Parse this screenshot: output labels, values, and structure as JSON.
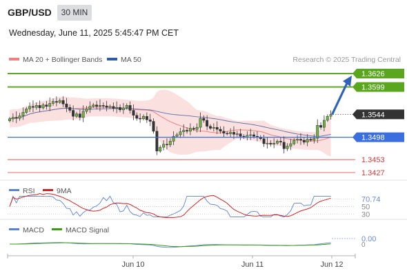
{
  "header": {
    "pair": "GBP/USD",
    "timeframe": "30 MIN",
    "datetime": "Wednesday, June 11, 2025 5:45:47 PM CET"
  },
  "legend": {
    "ma20": "MA 20 + Bollinger Bands",
    "ma50": "MA 50",
    "credit": "Research © 2025 Trading Central"
  },
  "colors": {
    "ma20": "#f08080",
    "ma50": "#2f5aa8",
    "resistance": "#5aa61e",
    "pivot": "#3b6fe0",
    "support": "#e86a6a",
    "last": "#333333",
    "rsi": "#5a7fd6",
    "rsi_ma": "#d42020",
    "macd": "#5a7fd6",
    "macd_signal": "#3a9a14"
  },
  "chart_data": [
    {
      "type": "candlestick",
      "x_labels": [
        "Jun 10",
        "Jun 11",
        "Jun 12"
      ],
      "levels": [
        {
          "value": 1.3626,
          "label": "1.3626",
          "kind": "resistance"
        },
        {
          "value": 1.3599,
          "label": "1.3599",
          "kind": "resistance"
        },
        {
          "value": 1.3544,
          "label": "1.3544",
          "kind": "last"
        },
        {
          "value": 1.3498,
          "label": "1.3498",
          "kind": "pivot"
        },
        {
          "value": 1.3453,
          "label": "1.3453",
          "kind": "support"
        },
        {
          "value": 1.3427,
          "label": "1.3427",
          "kind": "support"
        }
      ],
      "ylim": [
        1.3397,
        1.366
      ],
      "close": [
        1.3535,
        1.3538,
        1.3536,
        1.3541,
        1.3548,
        1.3555,
        1.356,
        1.3558,
        1.3562,
        1.3557,
        1.3563,
        1.356,
        1.3566,
        1.357,
        1.3568,
        1.3572,
        1.3565,
        1.3558,
        1.3552,
        1.354,
        1.3545,
        1.3538,
        1.355,
        1.3555,
        1.356,
        1.3563,
        1.356,
        1.3562,
        1.3561,
        1.3558,
        1.356,
        1.3556,
        1.3558,
        1.3553,
        1.3557,
        1.3562,
        1.3552,
        1.3542,
        1.3536,
        1.3535,
        1.354,
        1.3533,
        1.353,
        1.351,
        1.347,
        1.3478,
        1.3484,
        1.3483,
        1.349,
        1.35,
        1.3503,
        1.3509,
        1.3512,
        1.351,
        1.3516,
        1.3514,
        1.3518,
        1.3536,
        1.3532,
        1.352,
        1.3516,
        1.3518,
        1.3514,
        1.351,
        1.3506,
        1.3505,
        1.3508,
        1.3504,
        1.3505,
        1.35,
        1.3498,
        1.3502,
        1.3503,
        1.35,
        1.3498,
        1.3495,
        1.3485,
        1.3486,
        1.3484,
        1.3486,
        1.349,
        1.3488,
        1.3475,
        1.348,
        1.3485,
        1.3492,
        1.3494,
        1.3492,
        1.3488,
        1.3494,
        1.3492,
        1.3496,
        1.3522,
        1.3518,
        1.3532,
        1.354,
        1.3544
      ],
      "rsi_levels": [
        {
          "value": 70.74,
          "label": "70.74"
        },
        {
          "value": 50,
          "label": "50"
        },
        {
          "value": 30,
          "label": "30"
        }
      ],
      "rsi_legend": [
        "RSI",
        "9MA"
      ],
      "macd_level": {
        "value": 0.0,
        "label": "0.00"
      },
      "macd_legend": [
        "MACD",
        "MACD Signal"
      ]
    }
  ]
}
